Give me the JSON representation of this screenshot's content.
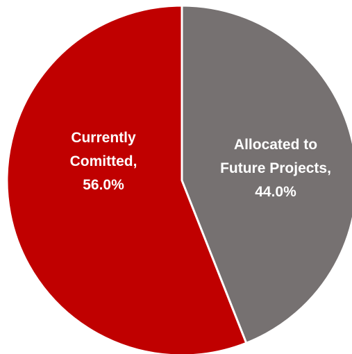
{
  "chart_data": {
    "type": "pie",
    "title": "",
    "slices": [
      {
        "label_lines": [
          "Allocated to",
          "Future Projects,",
          "44.0%"
        ],
        "category": "Allocated to Future Projects",
        "value": 44.0,
        "color": "#767171"
      },
      {
        "label_lines": [
          "Currently",
          "Comitted,",
          "56.0%"
        ],
        "category": "Currently Comitted",
        "value": 56.0,
        "color": "#c00000"
      }
    ],
    "start_angle_deg": 0,
    "direction": "clockwise",
    "slice_border_color": "#ffffff"
  }
}
